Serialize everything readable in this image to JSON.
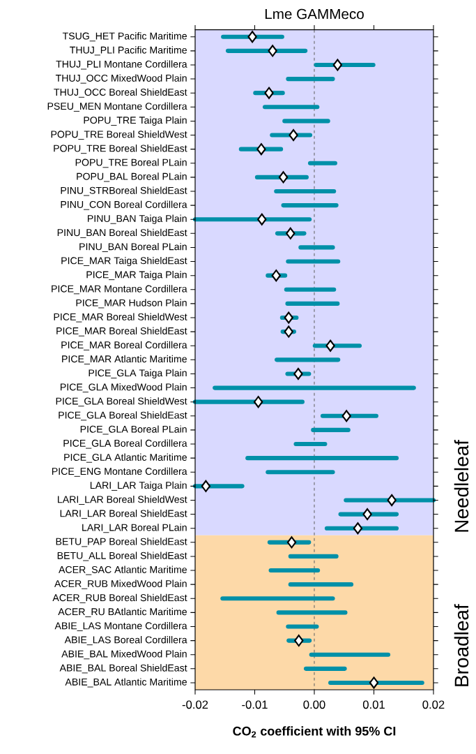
{
  "chart_data": {
    "type": "bar",
    "orientation": "horizontal",
    "title": "Lme GAMMeco",
    "xlabel": "CO$_{2}$ coefficient with 95% CI",
    "categories": [
      "TSUG_HET Pacific Maritime",
      "THUJ_PLI Pacific Maritime",
      "THUJ_PLI Montane Cordillera",
      "THUJ_OCC MixedWood Plain",
      "THUJ_OCC Boreal ShieldEast",
      "PSEU_MEN Montane Cordillera",
      "POPU_TRE Taiga Plain",
      "POPU_TRE Boreal ShieldWest",
      "POPU_TRE Boreal ShieldEast",
      "POPU_TRE Boreal PLain",
      "POPU_BAL Boreal PLain",
      "PINU_STRBoreal ShieldEast",
      "PINU_CON Boreal Cordillera",
      "PINU_BAN Taiga Plain",
      "PINU_BAN Boreal ShieldEast",
      "PINU_BAN Boreal PLain",
      "PICE_MAR Taiga ShieldEast",
      "PICE_MAR Taiga Plain",
      "PICE_MAR Montane Cordillera",
      "PICE_MAR Hudson Plain",
      "PICE_MAR Boreal ShieldWest",
      "PICE_MAR Boreal ShieldEast",
      "PICE_MAR Boreal Cordillera",
      "PICE_MAR Atlantic Maritime",
      "PICE_GLA Taiga Plain",
      "PICE_GLA MixedWood Plain",
      "PICE_GLA Boreal ShieldWest",
      "PICE_GLA Boreal ShieldEast",
      "PICE_GLA Boreal PLain",
      "PICE_GLA Boreal Cordillera",
      "PICE_GLA Atlantic Maritime",
      "PICE_ENG Montane Cordillera",
      "LARI_LAR Taiga Plain",
      "LARI_LAR Boreal ShieldWest",
      "LARI_LAR Boreal ShieldEast",
      "LARI_LAR Boreal PLain",
      "BETU_PAP Boreal ShieldEast",
      "BETU_ALL Boreal ShieldEast",
      "ACER_SAC Atlantic Maritime",
      "ACER_RUB MixedWood Plain",
      "ACER_RUB Boreal ShieldEast",
      "ACER_RU BAtlantic Maritime",
      "ABIE_LAS Montane Cordillera",
      "ABIE_LAS Boreal Cordillera",
      "ABIE_BAL MixedWood Plain",
      "ABIE_BAL Boreal ShieldEast",
      "ABIE_BAL Atlantic Maritime"
    ],
    "series": [
      {
        "type": "bar",
        "color": "#0090a8",
        "base": [
          -0.0153,
          -0.0145,
          0.0003,
          -0.0044,
          -0.0099,
          -0.0083,
          -0.005,
          -0.0071,
          -0.0123,
          -0.0007,
          -0.0096,
          -0.0064,
          -0.0052,
          -0.02,
          -0.0062,
          -0.0023,
          -0.0044,
          -0.0078,
          -0.0047,
          -0.0045,
          -0.0054,
          -0.0053,
          0.0001,
          -0.0063,
          -0.0045,
          -0.0167,
          -0.02,
          0.0014,
          -0.0002,
          -0.0031,
          -0.0112,
          -0.0078,
          -0.02,
          0.0053,
          0.0044,
          0.0021,
          -0.0075,
          -0.004,
          -0.0073,
          -0.004,
          -0.0154,
          -0.006,
          -0.0044,
          -0.0043,
          -0.0005,
          -0.0014,
          0.0027
        ],
        "values": [
          0.0099,
          0.013,
          0.0096,
          0.0075,
          0.0046,
          0.0088,
          0.0073,
          0.0064,
          0.0067,
          0.0042,
          0.0083,
          0.0097,
          0.0089,
          0.0192,
          0.0045,
          0.0054,
          0.0084,
          0.0029,
          0.008,
          0.0084,
          0.0024,
          0.0019,
          0.0075,
          0.0103,
          0.0036,
          0.0334,
          0.018,
          0.009,
          0.0059,
          0.0049,
          0.025,
          0.0109,
          0.0079,
          0.0147,
          0.0094,
          0.0117,
          0.0066,
          0.0077,
          0.0079,
          0.0102,
          0.0185,
          0.0112,
          0.0048,
          0.0035,
          0.0129,
          0.0065,
          0.0154
        ]
      },
      {
        "type": "scatter",
        "color": "#ffffff",
        "marker": "diamond",
        "values": [
          -0.0104,
          -0.007,
          0.0039,
          null,
          -0.0076,
          null,
          null,
          -0.0035,
          -0.0089,
          null,
          -0.0052,
          null,
          null,
          -0.0088,
          -0.004,
          null,
          null,
          -0.0064,
          null,
          null,
          -0.0043,
          -0.0043,
          0.0027,
          null,
          -0.0027,
          null,
          -0.0094,
          0.0054,
          null,
          null,
          null,
          null,
          -0.0182,
          0.013,
          0.0089,
          0.0073,
          -0.0038,
          null,
          null,
          null,
          null,
          null,
          null,
          -0.0026,
          null,
          null,
          0.01
        ]
      }
    ],
    "xlim": [
      -0.02,
      0.02
    ],
    "xticks": [
      -0.02,
      -0.01,
      {
        "value": 0,
        "label": "0.00"
      },
      0.01,
      0.02
    ],
    "ref_lines": [
      {
        "axis": "x",
        "value": 0,
        "color": "#666666",
        "line_style": "dashed"
      }
    ],
    "bands": [
      {
        "axis": "y",
        "from": "TSUG_HET Pacific Maritime",
        "to": "LARI_LAR Boreal PLain",
        "label": "Needleleaf",
        "color": "#d9d9ff"
      },
      {
        "axis": "y",
        "from": "BETU_PAP Boreal ShieldEast",
        "to": "ABIE_BAL Atlantic Maritime",
        "label": "Broadleaf",
        "color": "#fdd9a8"
      }
    ]
  }
}
